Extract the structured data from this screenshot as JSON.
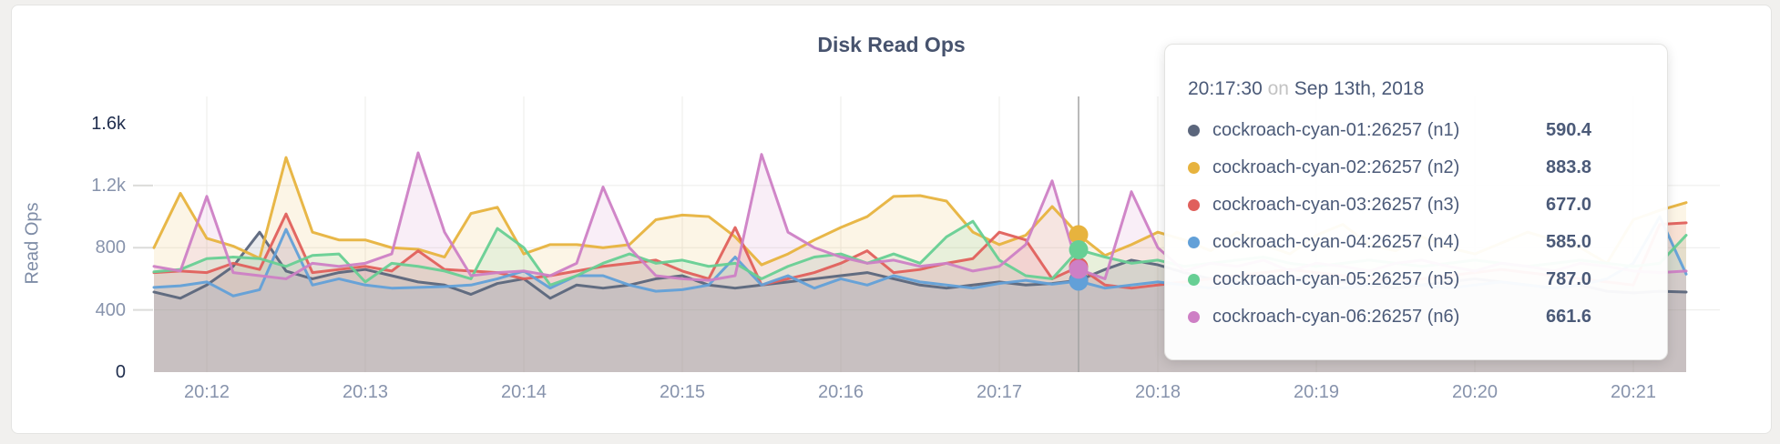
{
  "chart_data": {
    "type": "area",
    "title": "Disk Read Ops",
    "ylabel": "Read Ops",
    "ylim": [
      0,
      1600
    ],
    "grid": true,
    "legend_position": "tooltip",
    "x_start_time": "20:11:40",
    "x_step_seconds": 10,
    "yticks": [
      {
        "value": 0,
        "label": "0",
        "emph": true
      },
      {
        "value": 400,
        "label": "400",
        "emph": false
      },
      {
        "value": 800,
        "label": "800",
        "emph": false
      },
      {
        "value": 1200,
        "label": "1.2k",
        "emph": false
      },
      {
        "value": 1600,
        "label": "1.6k",
        "emph": true
      }
    ],
    "xticks": [
      "20:12",
      "20:13",
      "20:14",
      "20:15",
      "20:16",
      "20:17",
      "20:18",
      "20:19",
      "20:20",
      "20:21"
    ],
    "series": [
      {
        "name": "cockroach-cyan-01:26257 (n1)",
        "short": "n1",
        "color": "#5b667c",
        "values": [
          515,
          475,
          560,
          680,
          900,
          650,
          600,
          640,
          660,
          620,
          580,
          560,
          500,
          570,
          600,
          475,
          560,
          540,
          560,
          600,
          620,
          560,
          540,
          560,
          580,
          600,
          620,
          640,
          600,
          560,
          540,
          560,
          580,
          560,
          570,
          590.4,
          660,
          720,
          690,
          640,
          600,
          580,
          560,
          600,
          620,
          580,
          560,
          540,
          560,
          580,
          600,
          580,
          560,
          540,
          560,
          520,
          510,
          520,
          515
        ]
      },
      {
        "name": "cockroach-cyan-02:26257 (n2)",
        "short": "n2",
        "color": "#e7b33e",
        "values": [
          800,
          1150,
          860,
          810,
          732,
          1380,
          900,
          850,
          850,
          800,
          790,
          740,
          1020,
          1060,
          760,
          820,
          820,
          800,
          820,
          980,
          1010,
          1000,
          870,
          690,
          760,
          850,
          930,
          1000,
          1130,
          1135,
          1100,
          900,
          820,
          880,
          1065,
          883.8,
          750,
          820,
          900,
          850,
          780,
          900,
          820,
          760,
          880,
          950,
          820,
          780,
          870,
          800,
          760,
          830,
          900,
          850,
          800,
          700,
          980,
          1040,
          1090
        ]
      },
      {
        "name": "cockroach-cyan-03:26257 (n3)",
        "short": "n3",
        "color": "#e0605c",
        "values": [
          640,
          650,
          640,
          700,
          660,
          1017,
          640,
          660,
          680,
          650,
          780,
          660,
          650,
          640,
          600,
          620,
          650,
          680,
          700,
          720,
          650,
          600,
          930,
          560,
          600,
          640,
          700,
          780,
          640,
          660,
          700,
          730,
          900,
          850,
          600,
          677,
          560,
          540,
          560,
          580,
          600,
          620,
          640,
          660,
          640,
          620,
          600,
          580,
          600,
          620,
          640,
          660,
          640,
          620,
          600,
          580,
          560,
          950,
          960
        ]
      },
      {
        "name": "cockroach-cyan-04:26257 (n4)",
        "short": "n4",
        "color": "#62a0d8",
        "values": [
          545,
          555,
          580,
          490,
          530,
          918,
          560,
          600,
          560,
          540,
          545,
          550,
          560,
          600,
          650,
          540,
          620,
          620,
          560,
          520,
          530,
          560,
          740,
          560,
          620,
          540,
          600,
          560,
          620,
          580,
          560,
          540,
          570,
          590,
          565,
          585,
          540,
          560,
          580,
          560,
          540,
          560,
          580,
          600,
          560,
          540,
          560,
          580,
          560,
          540,
          560,
          580,
          560,
          540,
          560,
          600,
          700,
          1000,
          630
        ]
      },
      {
        "name": "cockroach-cyan-05:26257 (n5)",
        "short": "n5",
        "color": "#67cf94",
        "values": [
          645,
          660,
          730,
          740,
          730,
          680,
          750,
          760,
          580,
          700,
          680,
          650,
          600,
          924,
          800,
          560,
          620,
          700,
          760,
          700,
          720,
          680,
          700,
          600,
          680,
          740,
          760,
          700,
          760,
          700,
          870,
          970,
          720,
          620,
          600,
          787,
          740,
          700,
          720,
          680,
          700,
          720,
          740,
          700,
          680,
          700,
          720,
          700,
          680,
          700,
          720,
          700,
          680,
          700,
          720,
          700,
          680,
          700,
          880
        ]
      },
      {
        "name": "cockroach-cyan-06:26257 (n6)",
        "short": "n6",
        "color": "#ce7fc5",
        "values": [
          680,
          650,
          1130,
          640,
          620,
          600,
          700,
          680,
          700,
          760,
          1410,
          900,
          620,
          640,
          650,
          620,
          700,
          1190,
          800,
          620,
          600,
          590,
          620,
          1400,
          900,
          800,
          740,
          700,
          720,
          680,
          700,
          650,
          680,
          820,
          1230,
          661.6,
          600,
          1160,
          800,
          650,
          700,
          680,
          720,
          650,
          700,
          680,
          650,
          700,
          720,
          680,
          650,
          700,
          680,
          650,
          700,
          680,
          650,
          640,
          650
        ]
      }
    ]
  },
  "tooltip": {
    "time": "20:17:30",
    "conj": "on",
    "date": "Sep 13th, 2018",
    "hover_index": 35,
    "rows": [
      {
        "name": "cockroach-cyan-01:26257 (n1)",
        "value": "590.4",
        "color": "#5b667c"
      },
      {
        "name": "cockroach-cyan-02:26257 (n2)",
        "value": "883.8",
        "color": "#e7b33e"
      },
      {
        "name": "cockroach-cyan-03:26257 (n3)",
        "value": "677.0",
        "color": "#e0605c"
      },
      {
        "name": "cockroach-cyan-04:26257 (n4)",
        "value": "585.0",
        "color": "#62a0d8"
      },
      {
        "name": "cockroach-cyan-05:26257 (n5)",
        "value": "787.0",
        "color": "#67cf94"
      },
      {
        "name": "cockroach-cyan-06:26257 (n6)",
        "value": "661.6",
        "color": "#ce7fc5"
      }
    ]
  },
  "theme": {
    "grid_color": "#ececea",
    "tick_dash_color": "#dcdcda",
    "hover_line_color": "#a3a3a3",
    "fill_opacity": 0.13
  }
}
